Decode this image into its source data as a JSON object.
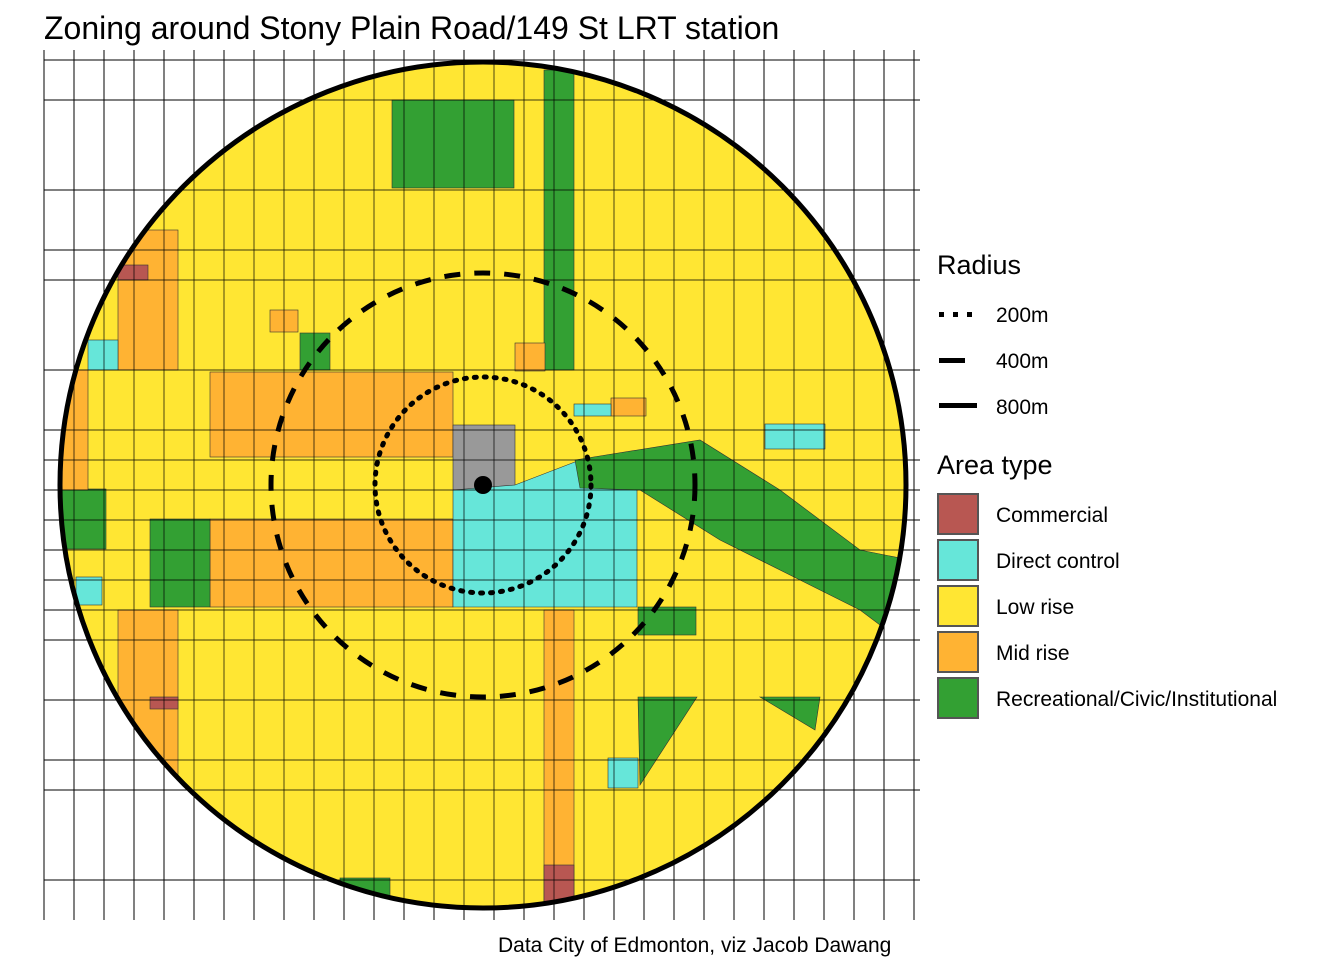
{
  "title": "Zoning around Stony Plain Road/149 St LRT station",
  "caption": "Data City of Edmonton, viz Jacob Dawang",
  "legend": {
    "radius_title": "Radius",
    "radius": [
      {
        "label": "200m",
        "style": "dotted"
      },
      {
        "label": "400m",
        "style": "dashed"
      },
      {
        "label": "800m",
        "style": "solid"
      }
    ],
    "area_title": "Area type",
    "area": [
      {
        "label": "Commercial",
        "color": "#b85752"
      },
      {
        "label": "Direct control",
        "color": "#66e6d9"
      },
      {
        "label": "Low rise",
        "color": "#ffe633"
      },
      {
        "label": "Mid rise",
        "color": "#ffb333"
      },
      {
        "label": "Recreational/Civic/Institutional",
        "color": "#33a033"
      }
    ]
  }
}
